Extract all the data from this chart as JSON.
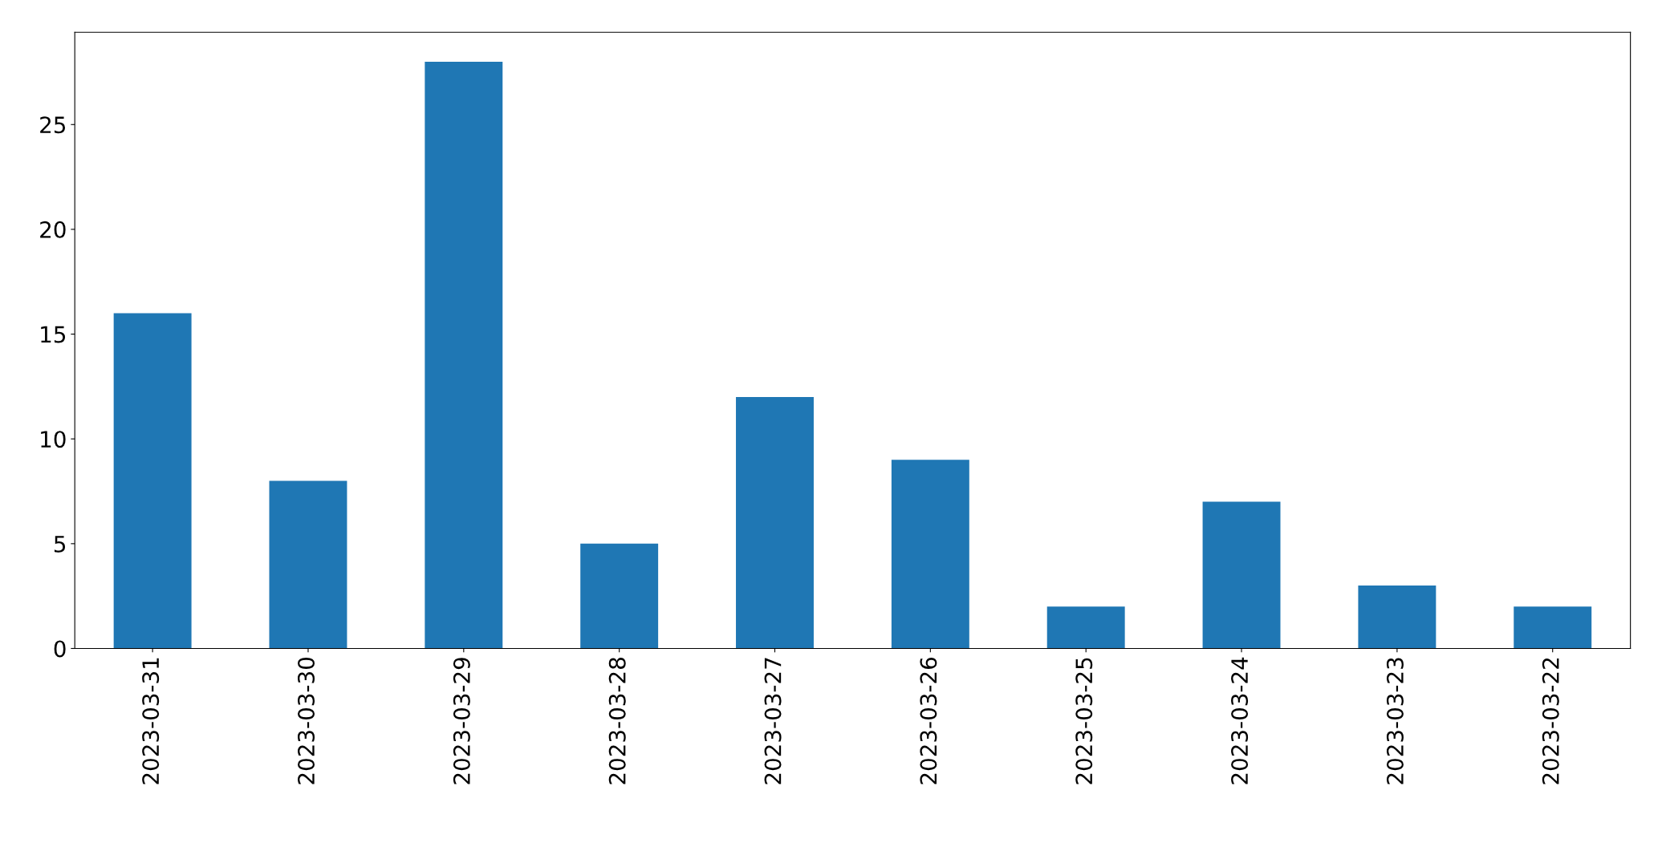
{
  "chart_data": {
    "type": "bar",
    "categories": [
      "2023-03-31",
      "2023-03-30",
      "2023-03-29",
      "2023-03-28",
      "2023-03-27",
      "2023-03-26",
      "2023-03-25",
      "2023-03-24",
      "2023-03-23",
      "2023-03-22"
    ],
    "values": [
      16,
      8,
      28,
      5,
      12,
      9,
      2,
      7,
      3,
      2
    ],
    "color": "#1f77b4",
    "ylim": [
      0,
      29.4
    ],
    "yticks": [
      0,
      5,
      10,
      15,
      20,
      25
    ],
    "grid": false,
    "legend": false
  }
}
